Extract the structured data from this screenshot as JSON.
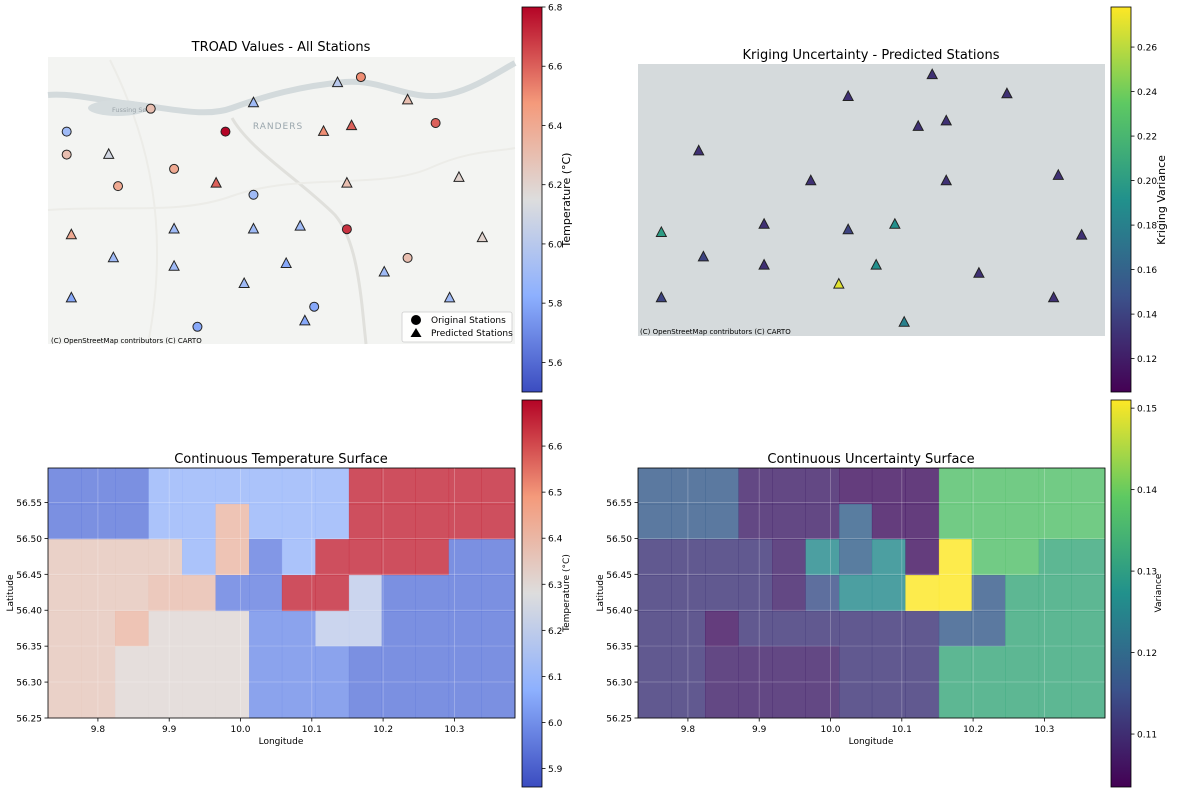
{
  "chart_data": [
    {
      "id": "troad-map",
      "type": "scatter",
      "title": "TROAD Values - All Stations",
      "attribution": "(C) OpenStreetMap contributors (C) CARTO",
      "map_labels": [
        "RANDERS",
        "Fussing Sø"
      ],
      "legend": {
        "placement": "bottom-right",
        "entries": [
          "Original Stations",
          "Predicted Stations"
        ]
      },
      "colorbar": {
        "label": "Temperature (°C)",
        "range": [
          5.5,
          6.8
        ],
        "ticks": [
          "5.6",
          "5.8",
          "6.0",
          "6.2",
          "6.4",
          "6.6",
          "6.8"
        ],
        "colormap": "coolwarm"
      },
      "series": [
        {
          "name": "Original Stations",
          "marker": "circle",
          "points": [
            {
              "x": 0.67,
              "y": 0.93,
              "v": 6.5
            },
            {
              "x": 0.22,
              "y": 0.82,
              "v": 6.3
            },
            {
              "x": 0.04,
              "y": 0.74,
              "v": 5.9
            },
            {
              "x": 0.38,
              "y": 0.74,
              "v": 6.8
            },
            {
              "x": 0.83,
              "y": 0.77,
              "v": 6.6
            },
            {
              "x": 0.04,
              "y": 0.66,
              "v": 6.3
            },
            {
              "x": 0.27,
              "y": 0.61,
              "v": 6.4
            },
            {
              "x": 0.15,
              "y": 0.55,
              "v": 6.4
            },
            {
              "x": 0.44,
              "y": 0.52,
              "v": 5.9
            },
            {
              "x": 0.64,
              "y": 0.4,
              "v": 6.7
            },
            {
              "x": 0.77,
              "y": 0.3,
              "v": 6.3
            },
            {
              "x": 0.57,
              "y": 0.13,
              "v": 5.8
            },
            {
              "x": 0.32,
              "y": 0.06,
              "v": 5.8
            }
          ]
        },
        {
          "name": "Predicted Stations",
          "marker": "triangle",
          "points": [
            {
              "x": 0.62,
              "y": 0.91,
              "v": 6.0
            },
            {
              "x": 0.44,
              "y": 0.84,
              "v": 5.9
            },
            {
              "x": 0.77,
              "y": 0.85,
              "v": 6.3
            },
            {
              "x": 0.59,
              "y": 0.74,
              "v": 6.5
            },
            {
              "x": 0.65,
              "y": 0.76,
              "v": 6.6
            },
            {
              "x": 0.13,
              "y": 0.66,
              "v": 6.1
            },
            {
              "x": 0.36,
              "y": 0.56,
              "v": 6.6
            },
            {
              "x": 0.64,
              "y": 0.56,
              "v": 6.3
            },
            {
              "x": 0.88,
              "y": 0.58,
              "v": 6.2
            },
            {
              "x": 0.27,
              "y": 0.4,
              "v": 5.9
            },
            {
              "x": 0.44,
              "y": 0.4,
              "v": 5.9
            },
            {
              "x": 0.54,
              "y": 0.41,
              "v": 5.9
            },
            {
              "x": 0.05,
              "y": 0.38,
              "v": 6.4
            },
            {
              "x": 0.93,
              "y": 0.37,
              "v": 6.2
            },
            {
              "x": 0.14,
              "y": 0.3,
              "v": 5.9
            },
            {
              "x": 0.27,
              "y": 0.27,
              "v": 5.9
            },
            {
              "x": 0.51,
              "y": 0.28,
              "v": 5.8
            },
            {
              "x": 0.72,
              "y": 0.25,
              "v": 5.9
            },
            {
              "x": 0.42,
              "y": 0.21,
              "v": 5.9
            },
            {
              "x": 0.05,
              "y": 0.16,
              "v": 5.8
            },
            {
              "x": 0.86,
              "y": 0.16,
              "v": 5.9
            },
            {
              "x": 0.55,
              "y": 0.08,
              "v": 5.8
            }
          ]
        }
      ]
    },
    {
      "id": "kriging-map",
      "type": "scatter",
      "title": "Kriging Uncertainty - Predicted Stations",
      "attribution": "(C) OpenStreetMap contributors (C) CARTO",
      "colorbar": {
        "label": "Kriging Variance",
        "range": [
          0.105,
          0.278
        ],
        "ticks": [
          "0.12",
          "0.14",
          "0.16",
          "0.18",
          "0.20",
          "0.22",
          "0.24",
          "0.26"
        ],
        "colormap": "viridis"
      },
      "series": [
        {
          "name": "Predicted Stations",
          "marker": "triangle",
          "points": [
            {
              "x": 0.63,
              "y": 0.96,
              "v": 0.13
            },
            {
              "x": 0.45,
              "y": 0.88,
              "v": 0.13
            },
            {
              "x": 0.79,
              "y": 0.89,
              "v": 0.13
            },
            {
              "x": 0.66,
              "y": 0.79,
              "v": 0.13
            },
            {
              "x": 0.6,
              "y": 0.77,
              "v": 0.13
            },
            {
              "x": 0.13,
              "y": 0.68,
              "v": 0.13
            },
            {
              "x": 0.37,
              "y": 0.57,
              "v": 0.13
            },
            {
              "x": 0.66,
              "y": 0.57,
              "v": 0.13
            },
            {
              "x": 0.9,
              "y": 0.59,
              "v": 0.13
            },
            {
              "x": 0.27,
              "y": 0.41,
              "v": 0.13
            },
            {
              "x": 0.55,
              "y": 0.41,
              "v": 0.19
            },
            {
              "x": 0.45,
              "y": 0.39,
              "v": 0.14
            },
            {
              "x": 0.05,
              "y": 0.38,
              "v": 0.2
            },
            {
              "x": 0.95,
              "y": 0.37,
              "v": 0.13
            },
            {
              "x": 0.14,
              "y": 0.29,
              "v": 0.14
            },
            {
              "x": 0.27,
              "y": 0.26,
              "v": 0.13
            },
            {
              "x": 0.51,
              "y": 0.26,
              "v": 0.19
            },
            {
              "x": 0.73,
              "y": 0.23,
              "v": 0.13
            },
            {
              "x": 0.43,
              "y": 0.19,
              "v": 0.27
            },
            {
              "x": 0.05,
              "y": 0.14,
              "v": 0.14
            },
            {
              "x": 0.89,
              "y": 0.14,
              "v": 0.13
            },
            {
              "x": 0.57,
              "y": 0.05,
              "v": 0.18
            }
          ]
        }
      ]
    },
    {
      "id": "temperature-surface",
      "type": "heatmap",
      "title": "Continuous Temperature Surface",
      "xlabel": "Longitude",
      "ylabel": "Latitude",
      "xlim": [
        9.73,
        10.385
      ],
      "ylim": [
        56.25,
        56.598
      ],
      "xticks": [
        "9.8",
        "9.9",
        "10.0",
        "10.1",
        "10.2",
        "10.3"
      ],
      "yticks": [
        "56.25",
        "56.30",
        "56.35",
        "56.40",
        "56.45",
        "56.50",
        "56.55"
      ],
      "colorbar": {
        "label": "Temperature (°C)",
        "range": [
          5.86,
          6.7
        ],
        "ticks": [
          "5.9",
          "6.0",
          "6.1",
          "6.2",
          "6.3",
          "6.4",
          "6.5",
          "6.6"
        ],
        "colormap": "coolwarm"
      },
      "x_edges": [
        9.73,
        9.777,
        9.824,
        9.871,
        9.918,
        9.965,
        10.012,
        10.058,
        10.105,
        10.152,
        10.198,
        10.245,
        10.292,
        10.338,
        10.385
      ],
      "y_edges_top_down": [
        56.598,
        56.548,
        56.499,
        56.449,
        56.399,
        56.35,
        56.3,
        56.25
      ],
      "values": [
        [
          5.95,
          5.95,
          5.95,
          6.1,
          6.1,
          6.1,
          6.1,
          6.1,
          6.1,
          6.65,
          6.65,
          6.65,
          6.65,
          6.65
        ],
        [
          5.95,
          5.95,
          5.95,
          6.1,
          6.1,
          6.4,
          6.1,
          6.1,
          6.1,
          6.65,
          6.65,
          6.65,
          6.65,
          6.65
        ],
        [
          6.35,
          6.35,
          6.35,
          6.35,
          6.1,
          6.4,
          5.97,
          6.1,
          6.65,
          6.65,
          6.65,
          6.65,
          5.95,
          5.95
        ],
        [
          6.35,
          6.35,
          6.35,
          6.38,
          6.38,
          5.97,
          5.97,
          6.65,
          6.65,
          6.2,
          5.95,
          5.95,
          5.95,
          5.95
        ],
        [
          6.35,
          6.35,
          6.4,
          6.3,
          6.3,
          6.3,
          6.0,
          6.0,
          6.2,
          6.2,
          5.95,
          5.95,
          5.95,
          5.95
        ],
        [
          6.35,
          6.35,
          6.3,
          6.3,
          6.3,
          6.3,
          6.0,
          6.0,
          6.0,
          5.95,
          5.95,
          5.95,
          5.95,
          5.95
        ],
        [
          6.35,
          6.35,
          6.3,
          6.3,
          6.3,
          6.3,
          6.0,
          6.0,
          6.0,
          5.95,
          5.95,
          5.95,
          5.95,
          5.95
        ]
      ]
    },
    {
      "id": "uncertainty-surface",
      "type": "heatmap",
      "title": "Continuous Uncertainty Surface",
      "xlabel": "Longitude",
      "ylabel": "Latitude",
      "xlim": [
        9.73,
        10.385
      ],
      "ylim": [
        56.25,
        56.598
      ],
      "xticks": [
        "9.8",
        "9.9",
        "10.0",
        "10.1",
        "10.2",
        "10.3"
      ],
      "yticks": [
        "56.25",
        "56.30",
        "56.35",
        "56.40",
        "56.45",
        "56.50",
        "56.55"
      ],
      "colorbar": {
        "label": "Variance",
        "range": [
          0.1035,
          0.151
        ],
        "ticks": [
          "0.11",
          "0.12",
          "0.13",
          "0.14",
          "0.15"
        ],
        "colormap": "viridis"
      },
      "x_edges": [
        9.73,
        9.777,
        9.824,
        9.871,
        9.918,
        9.965,
        10.012,
        10.058,
        10.105,
        10.152,
        10.198,
        10.245,
        10.292,
        10.338,
        10.385
      ],
      "y_edges_top_down": [
        56.598,
        56.548,
        56.499,
        56.449,
        56.399,
        56.35,
        56.3,
        56.25
      ],
      "values": [
        [
          0.117,
          0.117,
          0.117,
          0.108,
          0.108,
          0.108,
          0.106,
          0.106,
          0.106,
          0.137,
          0.137,
          0.137,
          0.137,
          0.137
        ],
        [
          0.117,
          0.117,
          0.117,
          0.108,
          0.108,
          0.108,
          0.118,
          0.106,
          0.106,
          0.137,
          0.137,
          0.137,
          0.137,
          0.137
        ],
        [
          0.111,
          0.111,
          0.111,
          0.111,
          0.108,
          0.126,
          0.118,
          0.126,
          0.106,
          0.151,
          0.137,
          0.137,
          0.132,
          0.132
        ],
        [
          0.111,
          0.111,
          0.111,
          0.111,
          0.108,
          0.115,
          0.126,
          0.126,
          0.151,
          0.151,
          0.117,
          0.132,
          0.132,
          0.132
        ],
        [
          0.111,
          0.111,
          0.106,
          0.111,
          0.111,
          0.111,
          0.111,
          0.111,
          0.111,
          0.117,
          0.117,
          0.132,
          0.132,
          0.132
        ],
        [
          0.111,
          0.111,
          0.108,
          0.108,
          0.108,
          0.108,
          0.111,
          0.111,
          0.111,
          0.132,
          0.132,
          0.132,
          0.132,
          0.132
        ],
        [
          0.111,
          0.111,
          0.108,
          0.108,
          0.108,
          0.108,
          0.111,
          0.111,
          0.111,
          0.132,
          0.132,
          0.132,
          0.132,
          0.132
        ]
      ]
    }
  ]
}
